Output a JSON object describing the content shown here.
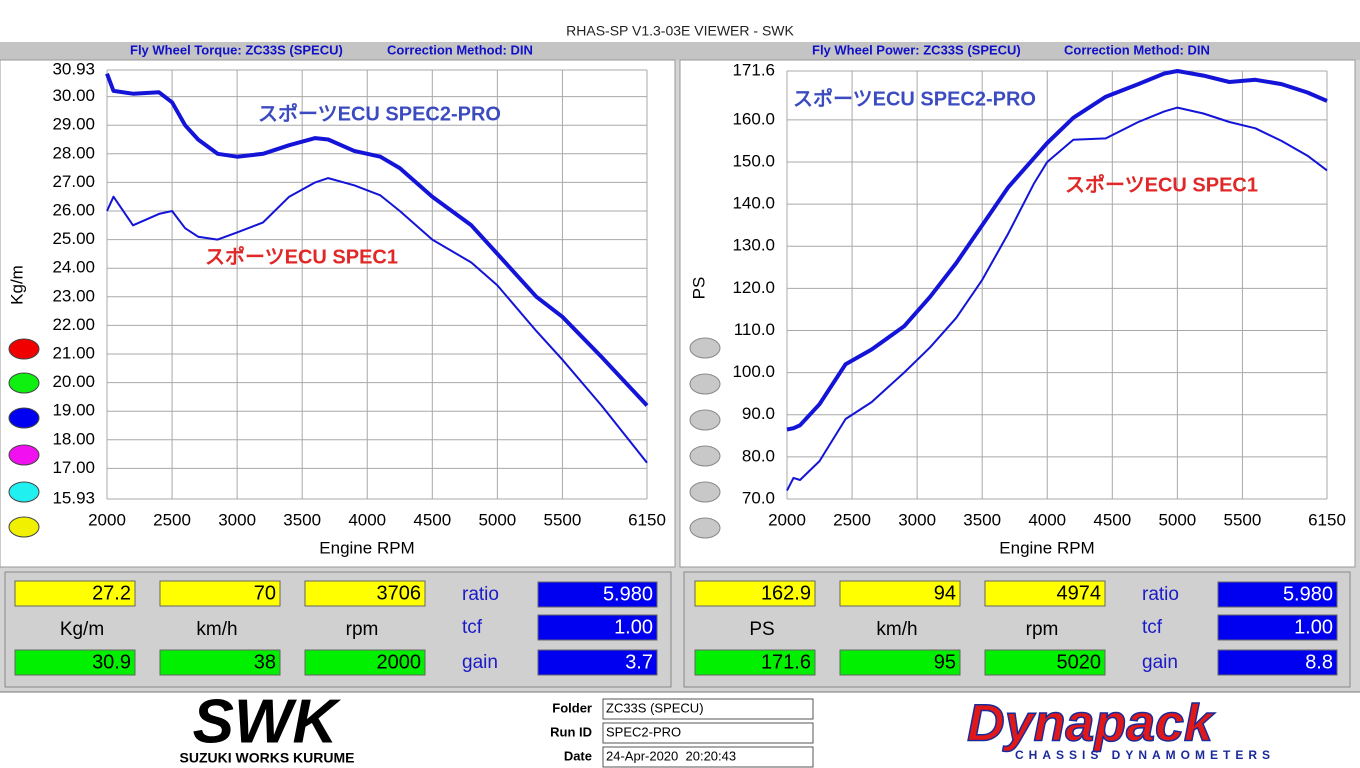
{
  "window_title": "RHAS-SP V1.3-03E VIEWER - SWK",
  "chart_data": [
    {
      "type": "line",
      "title": "Fly Wheel Torque: ZC33S (SPECU)",
      "correction": "Correction Method: DIN",
      "x_label": "Engine RPM",
      "y_label": "Kg/m",
      "xlim": [
        2000,
        6150
      ],
      "ylim": [
        15.93,
        30.93
      ],
      "xticks": [
        2000,
        2500,
        3000,
        3500,
        4000,
        4500,
        5000,
        5500,
        6150
      ],
      "yticks": [
        {
          "value": 30.93,
          "label": "30.93"
        },
        {
          "value": 30,
          "label": "30.00"
        },
        {
          "value": 29,
          "label": "29.00"
        },
        {
          "value": 28,
          "label": "28.00"
        },
        {
          "value": 27,
          "label": "27.00"
        },
        {
          "value": 26,
          "label": "26.00"
        },
        {
          "value": 25,
          "label": "25.00"
        },
        {
          "value": 24,
          "label": "24.00"
        },
        {
          "value": 23,
          "label": "23.00"
        },
        {
          "value": 22,
          "label": "22.00"
        },
        {
          "value": 21,
          "label": "21.00"
        },
        {
          "value": 20,
          "label": "20.00"
        },
        {
          "value": 19,
          "label": "19.00"
        },
        {
          "value": 18,
          "label": "18.00"
        },
        {
          "value": 17,
          "label": "17.00"
        },
        {
          "value": 15.93,
          "label": "15.93"
        }
      ],
      "grid": true,
      "x": [
        2000,
        2050,
        2200,
        2400,
        2500,
        2600,
        2700,
        2850,
        3000,
        3200,
        3400,
        3600,
        3700,
        3900,
        4100,
        4250,
        4500,
        4800,
        5000,
        5300,
        5500,
        5800,
        6150
      ],
      "series": [
        {
          "name": "スポーツECU SPEC2-PRO",
          "color": "#1414d8",
          "label_color": "#3c4cc0",
          "values": [
            30.8,
            30.2,
            30.1,
            30.15,
            29.8,
            29.0,
            28.5,
            28.0,
            27.9,
            28.0,
            28.3,
            28.55,
            28.5,
            28.1,
            27.9,
            27.5,
            26.5,
            25.5,
            24.5,
            23.0,
            22.3,
            20.9,
            19.2
          ]
        },
        {
          "name": "スポーツECU SPEC1",
          "color": "#1414d8",
          "label_color": "#e02828",
          "values": [
            26.0,
            26.5,
            25.5,
            25.9,
            26.0,
            25.4,
            25.1,
            25.0,
            25.25,
            25.6,
            26.5,
            27.0,
            27.15,
            26.9,
            26.55,
            26.0,
            25.0,
            24.2,
            23.4,
            21.8,
            20.8,
            19.2,
            17.2
          ]
        }
      ]
    },
    {
      "type": "line",
      "title": "Fly Wheel Power: ZC33S (SPECU)",
      "correction": "Correction Method: DIN",
      "x_label": "Engine RPM",
      "y_label": "PS",
      "xlim": [
        2000,
        6150
      ],
      "ylim": [
        70.0,
        171.6
      ],
      "xticks": [
        2000,
        2500,
        3000,
        3500,
        4000,
        4500,
        5000,
        5500,
        6150
      ],
      "yticks": [
        {
          "value": 171.6,
          "label": "171.6"
        },
        {
          "value": 160,
          "label": "160.0"
        },
        {
          "value": 150,
          "label": "150.0"
        },
        {
          "value": 140,
          "label": "140.0"
        },
        {
          "value": 130,
          "label": "130.0"
        },
        {
          "value": 120,
          "label": "120.0"
        },
        {
          "value": 110,
          "label": "110.0"
        },
        {
          "value": 100,
          "label": "100.0"
        },
        {
          "value": 90,
          "label": "90.0"
        },
        {
          "value": 80,
          "label": "80.0"
        },
        {
          "value": 70,
          "label": "70.0"
        }
      ],
      "grid": true,
      "x": [
        2000,
        2050,
        2100,
        2250,
        2450,
        2650,
        2900,
        3100,
        3300,
        3500,
        3700,
        3900,
        4000,
        4200,
        4450,
        4700,
        4900,
        5000,
        5200,
        5400,
        5600,
        5800,
        6000,
        6150
      ],
      "series": [
        {
          "name": "スポーツECU SPEC2-PRO",
          "color": "#1414d8",
          "label_color": "#3c4cc0",
          "values": [
            86.5,
            86.8,
            87.5,
            92.5,
            102.0,
            105.5,
            111.0,
            118.0,
            126.0,
            135.0,
            144.0,
            151.0,
            154.5,
            160.5,
            165.5,
            168.5,
            171.0,
            171.6,
            170.5,
            169.0,
            169.5,
            168.5,
            166.5,
            164.5
          ]
        },
        {
          "name": "スポーツECU SPEC1",
          "color": "#1414d8",
          "label_color": "#e02828",
          "values": [
            72.0,
            75.0,
            74.5,
            79.0,
            89.0,
            93.0,
            100.0,
            106.0,
            113.0,
            122.0,
            133.0,
            145.0,
            150.0,
            155.3,
            155.6,
            159.5,
            162.0,
            162.9,
            161.5,
            159.5,
            158.0,
            155.0,
            151.5,
            148.0
          ]
        }
      ]
    }
  ],
  "panels": [
    {
      "cursor": [
        "27.2",
        "70",
        "3706"
      ],
      "units": [
        "Kg/m",
        "km/h",
        "rpm"
      ],
      "peak": [
        "30.9",
        "38",
        "2000"
      ],
      "params": [
        {
          "label": "ratio",
          "value": "5.980"
        },
        {
          "label": "tcf",
          "value": "1.00"
        },
        {
          "label": "gain",
          "value": "3.7"
        }
      ]
    },
    {
      "cursor": [
        "162.9",
        "94",
        "4974"
      ],
      "units": [
        "PS",
        "km/h",
        "rpm"
      ],
      "peak": [
        "171.6",
        "95",
        "5020"
      ],
      "params": [
        {
          "label": "ratio",
          "value": "5.980"
        },
        {
          "label": "tcf",
          "value": "1.00"
        },
        {
          "label": "gain",
          "value": "8.8"
        }
      ]
    }
  ],
  "footer": {
    "swk_logo": "SWK",
    "swk_name": "SUZUKI WORKS KURUME",
    "fields": [
      {
        "label": "Folder",
        "value": "ZC33S (SPECU)"
      },
      {
        "label": "Run ID",
        "value": "SPEC2-PRO"
      },
      {
        "label": "Date",
        "value": "24-Apr-2020  20:20:43"
      }
    ],
    "dynapack_logo": "Dynapack",
    "dynapack_tagline": "CHASSIS DYNAMOMETERS"
  }
}
